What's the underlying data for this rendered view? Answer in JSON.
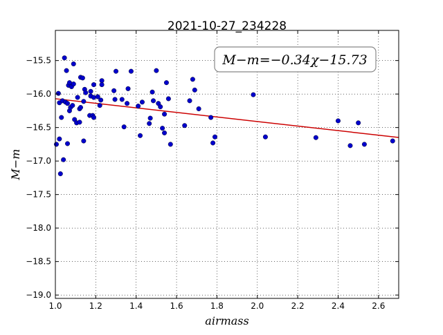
{
  "chart_data": {
    "type": "scatter",
    "title": "2021-10-27_234228",
    "xlabel": "airmass",
    "ylabel": "M−m",
    "annotation": "M−m=−0.34χ−15.73",
    "xlim": [
      1.0,
      2.7
    ],
    "ylim": [
      -19.05,
      -15.05
    ],
    "y_inverted": true,
    "grid": true,
    "x_ticks": [
      1.0,
      1.2,
      1.4,
      1.6,
      1.8,
      2.0,
      2.2,
      2.4,
      2.6
    ],
    "x_tick_labels": [
      "1.0",
      "1.2",
      "1.4",
      "1.6",
      "1.8",
      "2.0",
      "2.2",
      "2.4",
      "2.6"
    ],
    "y_ticks": [
      -15.5,
      -16.0,
      -16.5,
      -17.0,
      -17.5,
      -18.0,
      -18.5,
      -19.0
    ],
    "y_tick_labels": [
      "−15.5",
      "−16.0",
      "−16.5",
      "−17.0",
      "−17.5",
      "−18.0",
      "−18.5",
      "−19.0"
    ],
    "colors": {
      "points": "#0000cc",
      "fit_line": "#cc0000"
    },
    "fit": {
      "slope": -0.34,
      "intercept": -15.73
    },
    "points": [
      [
        1.005,
        -16.75
      ],
      [
        1.015,
        -15.99
      ],
      [
        1.02,
        -16.67
      ],
      [
        1.02,
        -16.13
      ],
      [
        1.025,
        -17.19
      ],
      [
        1.03,
        -16.35
      ],
      [
        1.035,
        -16.1
      ],
      [
        1.04,
        -16.98
      ],
      [
        1.045,
        -15.46
      ],
      [
        1.05,
        -16.12
      ],
      [
        1.055,
        -15.65
      ],
      [
        1.06,
        -16.14
      ],
      [
        1.06,
        -16.74
      ],
      [
        1.065,
        -15.87
      ],
      [
        1.07,
        -15.83
      ],
      [
        1.07,
        -16.25
      ],
      [
        1.075,
        -16.2
      ],
      [
        1.08,
        -15.89
      ],
      [
        1.085,
        -16.17
      ],
      [
        1.09,
        -15.85
      ],
      [
        1.09,
        -15.55
      ],
      [
        1.095,
        -16.38
      ],
      [
        1.105,
        -16.43
      ],
      [
        1.11,
        -16.05
      ],
      [
        1.12,
        -16.22
      ],
      [
        1.12,
        -16.42
      ],
      [
        1.125,
        -16.2
      ],
      [
        1.125,
        -15.75
      ],
      [
        1.135,
        -15.76
      ],
      [
        1.14,
        -16.11
      ],
      [
        1.14,
        -16.7
      ],
      [
        1.145,
        -15.93
      ],
      [
        1.15,
        -15.98
      ],
      [
        1.17,
        -16.32
      ],
      [
        1.175,
        -16.03
      ],
      [
        1.175,
        -15.96
      ],
      [
        1.185,
        -16.32
      ],
      [
        1.19,
        -16.35
      ],
      [
        1.19,
        -16.05
      ],
      [
        1.19,
        -15.86
      ],
      [
        1.21,
        -16.04
      ],
      [
        1.22,
        -16.17
      ],
      [
        1.225,
        -16.09
      ],
      [
        1.23,
        -15.8
      ],
      [
        1.23,
        -15.86
      ],
      [
        1.29,
        -15.95
      ],
      [
        1.295,
        -16.08
      ],
      [
        1.3,
        -15.66
      ],
      [
        1.33,
        -16.08
      ],
      [
        1.34,
        -16.49
      ],
      [
        1.355,
        -16.14
      ],
      [
        1.36,
        -15.92
      ],
      [
        1.375,
        -15.66
      ],
      [
        1.41,
        -16.18
      ],
      [
        1.42,
        -16.62
      ],
      [
        1.43,
        -16.12
      ],
      [
        1.465,
        -16.44
      ],
      [
        1.47,
        -16.36
      ],
      [
        1.48,
        -15.97
      ],
      [
        1.485,
        -16.1
      ],
      [
        1.5,
        -15.65
      ],
      [
        1.51,
        -16.14
      ],
      [
        1.52,
        -16.19
      ],
      [
        1.53,
        -16.51
      ],
      [
        1.54,
        -16.58
      ],
      [
        1.54,
        -16.3
      ],
      [
        1.55,
        -15.83
      ],
      [
        1.56,
        -16.07
      ],
      [
        1.57,
        -16.75
      ],
      [
        1.64,
        -16.47
      ],
      [
        1.665,
        -16.1
      ],
      [
        1.68,
        -15.78
      ],
      [
        1.69,
        -15.94
      ],
      [
        1.71,
        -16.22
      ],
      [
        1.77,
        -16.35
      ],
      [
        1.78,
        -16.73
      ],
      [
        1.79,
        -16.64
      ],
      [
        1.98,
        -16.01
      ],
      [
        2.04,
        -16.64
      ],
      [
        2.29,
        -16.65
      ],
      [
        2.4,
        -16.4
      ],
      [
        2.46,
        -16.77
      ],
      [
        2.5,
        -16.43
      ],
      [
        2.53,
        -16.75
      ],
      [
        2.67,
        -16.7
      ]
    ]
  }
}
